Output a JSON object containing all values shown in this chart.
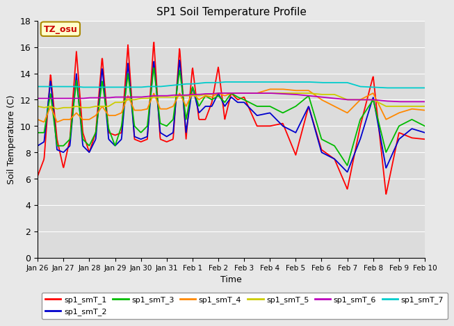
{
  "title": "SP1 Soil Temperature Profile",
  "xlabel": "Time",
  "ylabel": "Soil Temperature (C)",
  "ylim": [
    0,
    18
  ],
  "yticks": [
    0,
    2,
    4,
    6,
    8,
    10,
    12,
    14,
    16,
    18
  ],
  "tz_label": "TZ_osu",
  "fig_facecolor": "#e8e8e8",
  "ax_facecolor": "#dcdcdc",
  "grid_color": "#ffffff",
  "series_colors": {
    "sp1_smT_1": "#ff0000",
    "sp1_smT_2": "#0000cc",
    "sp1_smT_3": "#00bb00",
    "sp1_smT_4": "#ff8800",
    "sp1_smT_5": "#cccc00",
    "sp1_smT_6": "#bb00bb",
    "sp1_smT_7": "#00cccc"
  },
  "x_tick_labels": [
    "Jan 26",
    "Jan 27",
    "Jan 28",
    "Jan 29",
    "Jan 30",
    "Jan 31",
    "Feb 1",
    "Feb 2",
    "Feb 3",
    "Feb 4",
    "Feb 5",
    "Feb 6",
    "Feb 7",
    "Feb 8",
    "Feb 9",
    "Feb 10"
  ],
  "legend_order": [
    "sp1_smT_1",
    "sp1_smT_2",
    "sp1_smT_3",
    "sp1_smT_4",
    "sp1_smT_5",
    "sp1_smT_6",
    "sp1_smT_7"
  ]
}
